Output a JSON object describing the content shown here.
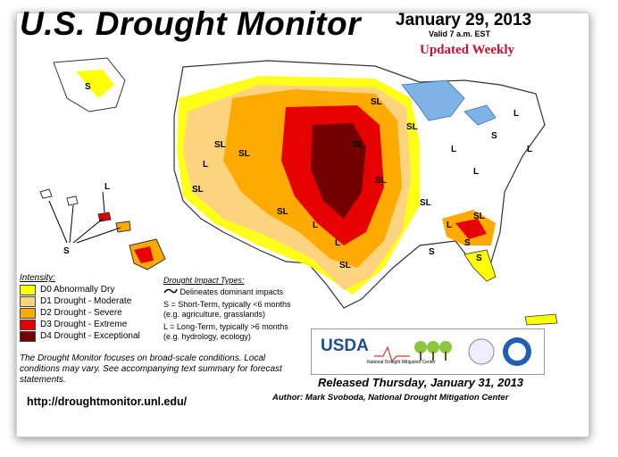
{
  "title": "U.S. Drought Monitor",
  "date": "January 29, 2013",
  "valid": "Valid 7 a.m. EST",
  "updated": "Updated Weekly",
  "intensity_title": "Intensity:",
  "legend": [
    {
      "label": "D0 Abnormally Dry",
      "color": "#ffff00"
    },
    {
      "label": "D1 Drought - Moderate",
      "color": "#fcd37f"
    },
    {
      "label": "D2 Drought - Severe",
      "color": "#ffaa00"
    },
    {
      "label": "D3 Drought - Extreme",
      "color": "#e60000"
    },
    {
      "label": "D4 Drought - Exceptional",
      "color": "#730000"
    }
  ],
  "impact": {
    "title": "Drought Impact Types:",
    "line1": "Delineates dominant impacts",
    "line2": "S = Short-Term, typically <6 months",
    "line3": "(e.g. agriculture, grasslands)",
    "line4": "L = Long-Term, typically >6 months",
    "line5": "(e.g. hydrology, ecology)"
  },
  "disclaimer": "The Drought Monitor focuses on broad-scale conditions. Local conditions may vary. See accompanying text summary for forecast statements.",
  "url": "http://droughtmonitor.unl.edu/",
  "released": "Released Thursday, January 31, 2013",
  "author": "Author: Mark Svoboda, National Drought Mitigation Center",
  "logos": {
    "usda": "USDA",
    "ndmc": "National Drought Mitigation Center"
  },
  "map_labels": [
    "S",
    "SL",
    "SL",
    "L",
    "SL",
    "SL",
    "SL",
    "SL",
    "SL",
    "L",
    "L",
    "SL",
    "L",
    "SL",
    "SL",
    "S",
    "SL",
    "S",
    "S",
    "L",
    "L",
    "L",
    "L",
    "S",
    "L",
    "S"
  ]
}
